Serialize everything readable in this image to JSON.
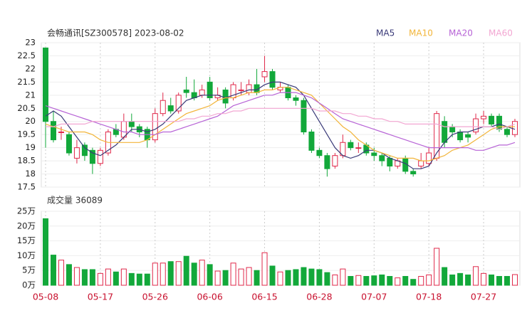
{
  "chart_data": {
    "type": "candlestick",
    "title": "会畅通讯[SZ300578] 2023-08-02",
    "volume_title": "成交量 36089",
    "categories": [
      "05-08",
      null,
      null,
      null,
      null,
      null,
      null,
      "05-17",
      null,
      null,
      null,
      null,
      null,
      null,
      "05-26",
      null,
      null,
      null,
      null,
      null,
      null,
      "06-06",
      null,
      null,
      null,
      null,
      null,
      null,
      "06-15",
      null,
      null,
      null,
      null,
      null,
      null,
      "06-28",
      null,
      null,
      null,
      null,
      null,
      null,
      "07-07",
      null,
      null,
      null,
      null,
      null,
      null,
      "07-18",
      null,
      null,
      null,
      null,
      null,
      null,
      "07-27",
      null,
      null,
      null,
      null
    ],
    "open": [
      22.8,
      20.0,
      19.6,
      19.5,
      18.6,
      19.1,
      18.9,
      18.4,
      18.8,
      19.7,
      19.4,
      20.0,
      19.8,
      19.7,
      19.3,
      20.3,
      20.6,
      20.4,
      21.2,
      21.1,
      21.0,
      21.5,
      20.9,
      21.2,
      20.9,
      21.2,
      21.1,
      21.4,
      21.7,
      21.9,
      21.2,
      21.3,
      20.9,
      20.8,
      19.6,
      18.9,
      18.7,
      18.3,
      18.7,
      19.2,
      19.0,
      19.1,
      18.8,
      18.7,
      18.6,
      18.3,
      18.6,
      18.1,
      18.3,
      18.4,
      18.6,
      20.0,
      19.8,
      19.6,
      19.5,
      19.6,
      20.1,
      20.2,
      20.2,
      19.7,
      19.5
    ],
    "close": [
      20.0,
      19.3,
      19.6,
      18.8,
      19.0,
      18.7,
      18.4,
      18.9,
      19.6,
      19.5,
      20.0,
      19.8,
      19.6,
      19.3,
      20.3,
      20.8,
      20.4,
      21.0,
      21.1,
      20.9,
      21.2,
      20.9,
      21.0,
      20.7,
      21.4,
      21.2,
      21.4,
      21.1,
      21.9,
      21.3,
      21.3,
      20.9,
      20.8,
      19.6,
      18.9,
      18.7,
      18.2,
      18.7,
      19.2,
      19.0,
      19.0,
      18.8,
      18.7,
      18.5,
      18.3,
      18.5,
      18.1,
      18.0,
      18.5,
      18.8,
      20.3,
      19.2,
      19.6,
      19.3,
      19.4,
      20.1,
      20.2,
      19.9,
      19.7,
      19.5,
      20.0
    ],
    "high": [
      22.8,
      20.4,
      19.8,
      19.6,
      19.3,
      19.2,
      19.0,
      19.0,
      19.7,
      19.9,
      20.3,
      20.3,
      19.9,
      19.8,
      20.5,
      21.1,
      20.9,
      21.1,
      21.7,
      21.6,
      21.4,
      21.7,
      21.3,
      21.3,
      21.5,
      21.5,
      21.6,
      22.0,
      22.5,
      22.0,
      21.5,
      21.4,
      21.0,
      20.9,
      19.7,
      19.0,
      18.8,
      18.8,
      19.5,
      19.3,
      19.2,
      19.2,
      19.0,
      18.8,
      18.7,
      18.6,
      18.7,
      18.2,
      18.8,
      19.0,
      20.4,
      20.2,
      19.9,
      19.7,
      19.6,
      20.3,
      20.4,
      20.3,
      20.3,
      19.8,
      20.1
    ],
    "low": [
      19.0,
      19.2,
      19.3,
      18.7,
      18.4,
      18.5,
      18.0,
      18.3,
      18.7,
      19.4,
      19.3,
      19.6,
      19.4,
      19.0,
      19.2,
      20.2,
      20.3,
      20.3,
      20.9,
      20.8,
      20.9,
      20.8,
      20.8,
      20.5,
      20.8,
      21.0,
      21.0,
      21.0,
      21.5,
      21.2,
      21.1,
      20.8,
      20.6,
      19.5,
      18.8,
      18.6,
      17.9,
      18.2,
      18.6,
      18.9,
      18.8,
      18.7,
      18.5,
      18.3,
      18.1,
      18.2,
      18.0,
      17.9,
      18.2,
      18.3,
      18.5,
      19.0,
      19.4,
      19.2,
      19.2,
      19.5,
      19.9,
      19.8,
      19.6,
      19.4,
      19.4
    ],
    "volume": [
      225000,
      102000,
      85000,
      70000,
      60000,
      53000,
      53000,
      40000,
      55000,
      45000,
      55000,
      40000,
      38000,
      38000,
      75000,
      75000,
      80000,
      80000,
      98000,
      75000,
      85000,
      70000,
      48000,
      50000,
      75000,
      55000,
      60000,
      50000,
      110000,
      65000,
      45000,
      50000,
      53000,
      60000,
      55000,
      53000,
      43000,
      35000,
      55000,
      30000,
      33000,
      30000,
      32000,
      35000,
      30000,
      25000,
      30000,
      20000,
      30000,
      35000,
      125000,
      60000,
      35000,
      40000,
      35000,
      63000,
      40000,
      35000,
      30000,
      30000,
      36089
    ],
    "up_color": "#e0284a",
    "down_color": "#12a83a",
    "series": [
      {
        "name": "MA5",
        "color": "#3a3a78",
        "values": [
          20.2,
          20.4,
          20.2,
          19.8,
          19.4,
          19.0,
          18.8,
          18.7,
          18.9,
          19.1,
          19.4,
          19.7,
          19.7,
          19.6,
          19.7,
          19.9,
          20.2,
          20.5,
          20.8,
          20.9,
          21.0,
          21.0,
          21.0,
          20.9,
          21.0,
          21.1,
          21.2,
          21.2,
          21.4,
          21.5,
          21.5,
          21.4,
          21.3,
          21.0,
          20.5,
          20.0,
          19.5,
          19.0,
          18.7,
          18.6,
          18.7,
          18.9,
          18.9,
          18.8,
          18.6,
          18.5,
          18.4,
          18.2,
          18.2,
          18.3,
          18.8,
          19.2,
          19.5,
          19.6,
          19.6,
          19.7,
          19.8,
          19.8,
          19.9,
          19.8,
          19.7
        ]
      },
      {
        "name": "MA10",
        "color": "#f2b53a",
        "values": [
          19.9,
          19.8,
          19.7,
          19.6,
          19.6,
          19.6,
          19.5,
          19.3,
          19.2,
          19.2,
          19.2,
          19.2,
          19.2,
          19.3,
          19.5,
          19.7,
          19.9,
          20.1,
          20.3,
          20.4,
          20.5,
          20.6,
          20.8,
          20.9,
          20.9,
          21.0,
          21.1,
          21.1,
          21.2,
          21.2,
          21.3,
          21.3,
          21.2,
          21.1,
          21.0,
          20.7,
          20.4,
          20.1,
          19.8,
          19.6,
          19.3,
          19.1,
          18.9,
          18.8,
          18.7,
          18.6,
          18.6,
          18.6,
          18.5,
          18.5,
          18.6,
          18.7,
          18.9,
          19.0,
          19.1,
          19.3,
          19.5,
          19.7,
          19.8,
          19.8,
          19.8
        ]
      },
      {
        "name": "MA20",
        "color": "#b763d6",
        "values": [
          20.6,
          20.5,
          20.4,
          20.3,
          20.2,
          20.1,
          20.0,
          19.9,
          19.8,
          19.7,
          19.6,
          19.6,
          19.5,
          19.5,
          19.5,
          19.6,
          19.6,
          19.7,
          19.8,
          19.9,
          20.0,
          20.1,
          20.2,
          20.4,
          20.6,
          20.7,
          20.8,
          20.9,
          21.0,
          21.0,
          21.1,
          21.1,
          21.1,
          21.0,
          20.9,
          20.7,
          20.5,
          20.3,
          20.1,
          20.0,
          19.9,
          19.8,
          19.7,
          19.6,
          19.5,
          19.4,
          19.3,
          19.2,
          19.1,
          19.0,
          19.0,
          19.0,
          19.0,
          19.0,
          19.0,
          18.9,
          18.9,
          19.0,
          19.1,
          19.1,
          19.2
        ]
      },
      {
        "name": "MA60",
        "color": "#f2a6d2",
        "values": [
          19.8,
          19.8,
          19.9,
          19.9,
          19.9,
          19.9,
          20.0,
          20.0,
          20.0,
          20.0,
          20.0,
          20.0,
          20.0,
          20.0,
          20.0,
          20.0,
          20.0,
          20.0,
          20.1,
          20.1,
          20.2,
          20.2,
          20.3,
          20.3,
          20.4,
          20.4,
          20.5,
          20.5,
          20.5,
          20.5,
          20.5,
          20.5,
          20.5,
          20.5,
          20.5,
          20.4,
          20.4,
          20.4,
          20.3,
          20.3,
          20.2,
          20.2,
          20.1,
          20.1,
          20.0,
          20.0,
          19.9,
          19.9,
          19.9,
          19.9,
          19.9,
          19.8,
          19.8,
          19.8,
          19.8,
          19.8,
          19.8,
          19.8,
          19.7,
          19.8,
          19.9
        ]
      }
    ],
    "ylim": [
      17.5,
      23
    ],
    "yticks": [
      17.5,
      18,
      18.5,
      19,
      19.5,
      20,
      20.5,
      21,
      21.5,
      22,
      22.5,
      23
    ],
    "vlim": [
      0,
      250000
    ],
    "vticks": [
      {
        "value": 0,
        "label": "0万"
      },
      {
        "value": 50000,
        "label": "5万"
      },
      {
        "value": 100000,
        "label": "10万"
      },
      {
        "value": 150000,
        "label": "15万"
      },
      {
        "value": 200000,
        "label": "20万"
      },
      {
        "value": 250000,
        "label": "25万"
      }
    ],
    "grid": true
  }
}
